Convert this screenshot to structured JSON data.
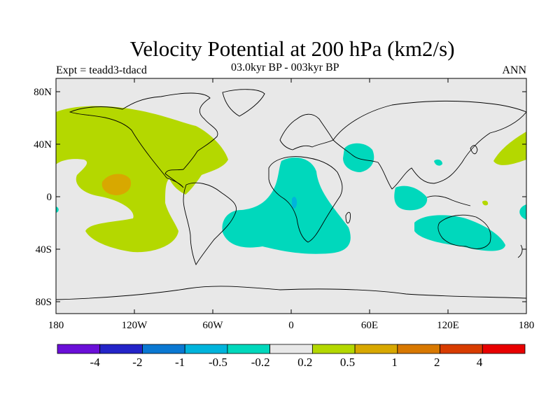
{
  "header": {
    "title": "Velocity Potential at 200 hPa (km2/s)",
    "subtitle": "03.0kyr BP - 003kyr BP",
    "experiment": "Expt = teadd3-tdacd",
    "season": "ANN"
  },
  "axes": {
    "lat_labels": [
      "80N",
      "40N",
      "0",
      "40S",
      "80S"
    ],
    "lon_labels": [
      "180",
      "120W",
      "60W",
      "0",
      "60E",
      "120E",
      "180"
    ]
  },
  "colorbar": {
    "colors": [
      "#6a0fd8",
      "#2424c8",
      "#0a78d2",
      "#00b4dc",
      "#00d8bc",
      "#e8e8e8",
      "#b4d800",
      "#d8a800",
      "#d87800",
      "#d83c00",
      "#e80000"
    ],
    "labels": [
      "-4",
      "-2",
      "-1",
      "-0.5",
      "-0.2",
      "0.2",
      "0.5",
      "1",
      "2",
      "4"
    ]
  },
  "colors": {
    "background": "#e8e8e8",
    "positive_light": "#b4d800",
    "positive_mid": "#d8a800",
    "negative_light": "#00d8bc",
    "negative_mid": "#00b4dc"
  }
}
